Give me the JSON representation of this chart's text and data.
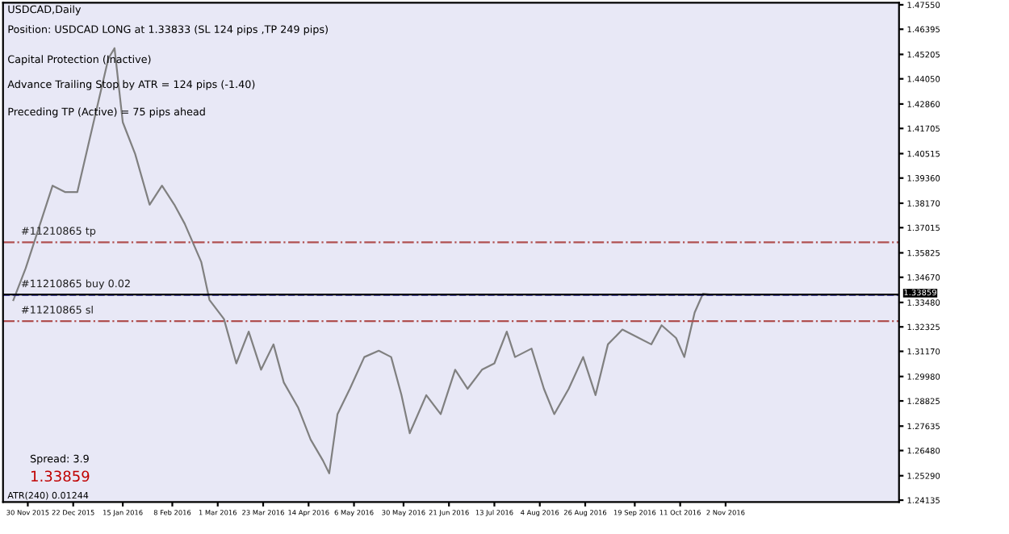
{
  "chart_data": {
    "type": "line",
    "title": "USDCAD,Daily",
    "annotations": [
      "Position: USDCAD LONG at 1.33833 (SL 124 pips ,TP 249 pips)",
      "Capital Protection (Inactive)",
      "Advance Trailing Stop by ATR = 124 pips (-1.40)",
      "Preceding TP (Active) = 75 pips ahead",
      "Spread: 3.9",
      "1.33859",
      "ATR(240) 0.01244"
    ],
    "x": [
      "2015-11-23",
      "2015-11-29",
      "2015-12-06",
      "2015-12-12",
      "2015-12-18",
      "2015-12-24",
      "2015-12-29",
      "2016-01-03",
      "2016-01-08",
      "2016-01-11",
      "2016-01-15",
      "2016-01-21",
      "2016-01-28",
      "2016-02-03",
      "2016-02-09",
      "2016-02-14",
      "2016-02-22",
      "2016-02-26",
      "2016-03-04",
      "2016-03-10",
      "2016-03-16",
      "2016-03-22",
      "2016-03-28",
      "2016-04-02",
      "2016-04-09",
      "2016-04-15",
      "2016-04-21",
      "2016-04-24",
      "2016-04-28",
      "2016-05-04",
      "2016-05-11",
      "2016-05-18",
      "2016-05-24",
      "2016-05-29",
      "2016-06-02",
      "2016-06-10",
      "2016-06-17",
      "2016-06-24",
      "2016-06-30",
      "2016-07-07",
      "2016-07-13",
      "2016-07-19",
      "2016-07-23",
      "2016-07-31",
      "2016-08-06",
      "2016-08-11",
      "2016-08-18",
      "2016-08-25",
      "2016-08-31",
      "2016-09-06",
      "2016-09-13",
      "2016-09-21",
      "2016-09-27",
      "2016-10-02",
      "2016-10-09",
      "2016-10-13",
      "2016-10-18",
      "2016-10-22",
      "2016-10-25"
    ],
    "series": [
      {
        "color": "#808080",
        "values": [
          1.3359,
          1.351,
          1.372,
          1.39,
          1.387,
          1.387,
          1.408,
          1.429,
          1.45,
          1.455,
          1.42,
          1.405,
          1.381,
          1.39,
          1.381,
          1.372,
          1.354,
          1.336,
          1.327,
          1.306,
          1.321,
          1.303,
          1.315,
          1.297,
          1.285,
          1.27,
          1.26,
          1.254,
          1.282,
          1.294,
          1.309,
          1.312,
          1.309,
          1.291,
          1.273,
          1.291,
          1.282,
          1.303,
          1.294,
          1.303,
          1.306,
          1.321,
          1.309,
          1.313,
          1.294,
          1.282,
          1.294,
          1.309,
          1.291,
          1.315,
          1.322,
          1.318,
          1.315,
          1.324,
          1.318,
          1.309,
          1.33,
          1.3389,
          1.3386
        ]
      }
    ],
    "xlim": [
      "2015-11-18",
      "2017-01-25"
    ],
    "xticks": [
      {
        "value": "2015-11-30",
        "label": "30 Nov 2015"
      },
      {
        "value": "2015-12-22",
        "label": "22 Dec 2015"
      },
      {
        "value": "2016-01-15",
        "label": "15 Jan 2016"
      },
      {
        "value": "2016-02-08",
        "label": "8 Feb 2016"
      },
      {
        "value": "2016-03-01",
        "label": "1 Mar 2016"
      },
      {
        "value": "2016-03-23",
        "label": "23 Mar 2016"
      },
      {
        "value": "2016-04-14",
        "label": "14 Apr 2016"
      },
      {
        "value": "2016-05-06",
        "label": "6 May 2016"
      },
      {
        "value": "2016-05-30",
        "label": "30 May 2016"
      },
      {
        "value": "2016-06-21",
        "label": "21 Jun 2016"
      },
      {
        "value": "2016-07-13",
        "label": "13 Jul 2016"
      },
      {
        "value": "2016-08-04",
        "label": "4 Aug 2016"
      },
      {
        "value": "2016-08-26",
        "label": "26 Aug 2016"
      },
      {
        "value": "2016-09-19",
        "label": "19 Sep 2016"
      },
      {
        "value": "2016-10-11",
        "label": "11 Oct 2016"
      },
      {
        "value": "2016-11-02",
        "label": "2 Nov 2016"
      }
    ],
    "ylim": [
      1.2405,
      1.4765
    ],
    "yticks": [
      {
        "value": 1.4755,
        "label": "1.47550"
      },
      {
        "value": 1.46395,
        "label": "1.46395"
      },
      {
        "value": 1.45205,
        "label": "1.45205"
      },
      {
        "value": 1.4405,
        "label": "1.44050"
      },
      {
        "value": 1.4286,
        "label": "1.42860"
      },
      {
        "value": 1.41705,
        "label": "1.41705"
      },
      {
        "value": 1.40515,
        "label": "1.40515"
      },
      {
        "value": 1.3936,
        "label": "1.39360"
      },
      {
        "value": 1.3817,
        "label": "1.38170"
      },
      {
        "value": 1.37015,
        "label": "1.37015"
      },
      {
        "value": 1.35825,
        "label": "1.35825"
      },
      {
        "value": 1.3467,
        "label": "1.34670"
      },
      {
        "value": 1.3348,
        "label": "1.33480"
      },
      {
        "value": 1.32325,
        "label": "1.32325"
      },
      {
        "value": 1.3117,
        "label": "1.31170"
      },
      {
        "value": 1.2998,
        "label": "1.29980"
      },
      {
        "value": 1.28825,
        "label": "1.28825"
      },
      {
        "value": 1.27635,
        "label": "1.27635"
      },
      {
        "value": 1.2648,
        "label": "1.26480"
      },
      {
        "value": 1.2529,
        "label": "1.25290"
      },
      {
        "value": 1.24135,
        "label": "1.24135"
      }
    ],
    "ref_lines": [
      {
        "axis": "y",
        "value": 1.36323,
        "label": "#11210865 tp",
        "color": "#b05050",
        "line_style": "dashdot"
      },
      {
        "axis": "y",
        "value": 1.33833,
        "label": "#11210865 buy 0.02",
        "color": "#3030c0",
        "line_style": "dashed"
      },
      {
        "axis": "y",
        "value": 1.32593,
        "label": "#11210865 sl",
        "color": "#b05050",
        "line_style": "dashdot"
      },
      {
        "axis": "y",
        "value": 1.33859,
        "label": "1.33859",
        "color": "#000000",
        "line_style": "solid"
      }
    ],
    "grid": false,
    "legend": false,
    "marker": "none",
    "line_style": "solid"
  }
}
